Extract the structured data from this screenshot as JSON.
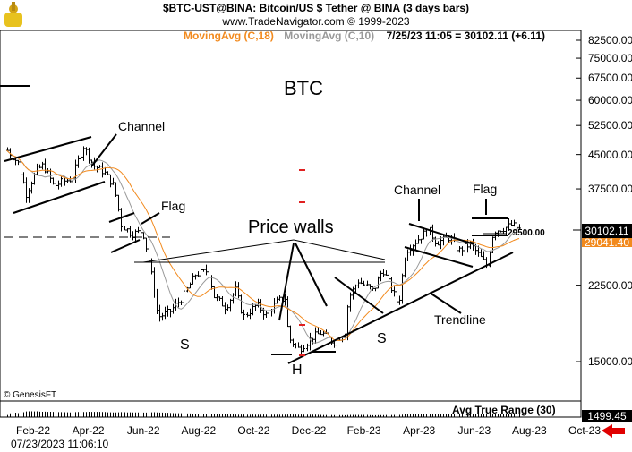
{
  "header": {
    "title": "$BTC-UST@BINA:  Bitcoin/US $ Tether @ BINA  (3 days bars)",
    "site": "www.TradeNavigator.com © 1999-2023",
    "ma18_label": "MovingAvg (C,18)",
    "ma10_label": "MovingAvg (C,10)",
    "quote": "7/25/23 11:05 = 30102.11 (+6.11)"
  },
  "colors": {
    "ma18": "#f28a1e",
    "ma10": "#999999",
    "bars": "#000000",
    "marker": "#e02020",
    "arrow": "#e00000"
  },
  "annotations": {
    "btc": "BTC",
    "channel1": "Channel",
    "flag1": "Flag",
    "price_walls": "Price walls",
    "channel2": "Channel",
    "flag2": "Flag",
    "trendline": "Trendline",
    "s1": "S",
    "h": "H",
    "s2": "S",
    "level": "29500.00"
  },
  "footer": {
    "copyright": "© GenesisFT",
    "atr_label": "Avg True Range (30)",
    "atr_value": "1499.45",
    "timestamp": "07/23/2023 11:06:10"
  },
  "chart_data": {
    "type": "ohlc-bar",
    "scale": "log",
    "ylim": [
      15000,
      82500
    ],
    "y_ticks": [
      "82500.00",
      "75000.00",
      "67500.00",
      "60000.00",
      "52500.00",
      "45000.00",
      "37500.00",
      "22500.00",
      "15000.00"
    ],
    "x_ticks": [
      "Feb-22",
      "Apr-22",
      "Jun-22",
      "Aug-22",
      "Oct-22",
      "Dec-22",
      "Feb-23",
      "Apr-23",
      "Jun-23",
      "Aug-23",
      "Oct-23"
    ],
    "last_price": "30102.11",
    "ma18_last": "29041.40",
    "approx_closes": [
      [
        "2022-01-03",
        46000
      ],
      [
        "2022-01-15",
        43000
      ],
      [
        "2022-01-24",
        36500
      ],
      [
        "2022-02-05",
        41500
      ],
      [
        "2022-02-12",
        42500
      ],
      [
        "2022-02-24",
        38000
      ],
      [
        "2022-03-05",
        39000
      ],
      [
        "2022-03-15",
        39500
      ],
      [
        "2022-03-28",
        47000
      ],
      [
        "2022-04-08",
        42500
      ],
      [
        "2022-04-20",
        41000
      ],
      [
        "2022-05-01",
        38000
      ],
      [
        "2022-05-09",
        31000
      ],
      [
        "2022-05-20",
        29500
      ],
      [
        "2022-06-01",
        30000
      ],
      [
        "2022-06-13",
        22500
      ],
      [
        "2022-06-18",
        19000
      ],
      [
        "2022-07-01",
        19500
      ],
      [
        "2022-07-15",
        21000
      ],
      [
        "2022-07-29",
        23800
      ],
      [
        "2022-08-12",
        24300
      ],
      [
        "2022-08-19",
        21200
      ],
      [
        "2022-09-01",
        20000
      ],
      [
        "2022-09-12",
        22000
      ],
      [
        "2022-09-20",
        19000
      ],
      [
        "2022-10-05",
        20300
      ],
      [
        "2022-10-15",
        19200
      ],
      [
        "2022-10-28",
        20700
      ],
      [
        "2022-11-05",
        21000
      ],
      [
        "2022-11-09",
        17000
      ],
      [
        "2022-11-21",
        16000
      ],
      [
        "2022-12-05",
        17100
      ],
      [
        "2022-12-15",
        17500
      ],
      [
        "2022-12-28",
        16600
      ],
      [
        "2023-01-10",
        17500
      ],
      [
        "2023-01-14",
        21000
      ],
      [
        "2023-01-25",
        23000
      ],
      [
        "2023-02-10",
        21800
      ],
      [
        "2023-02-20",
        24500
      ],
      [
        "2023-03-10",
        20200
      ],
      [
        "2023-03-18",
        27000
      ],
      [
        "2023-03-30",
        28500
      ],
      [
        "2023-04-12",
        30200
      ],
      [
        "2023-04-20",
        28200
      ],
      [
        "2023-05-05",
        29000
      ],
      [
        "2023-05-15",
        27000
      ],
      [
        "2023-05-28",
        28000
      ],
      [
        "2023-06-15",
        25000
      ],
      [
        "2023-06-22",
        30000
      ],
      [
        "2023-07-05",
        30500
      ],
      [
        "2023-07-13",
        31000
      ],
      [
        "2023-07-23",
        30100
      ]
    ]
  }
}
